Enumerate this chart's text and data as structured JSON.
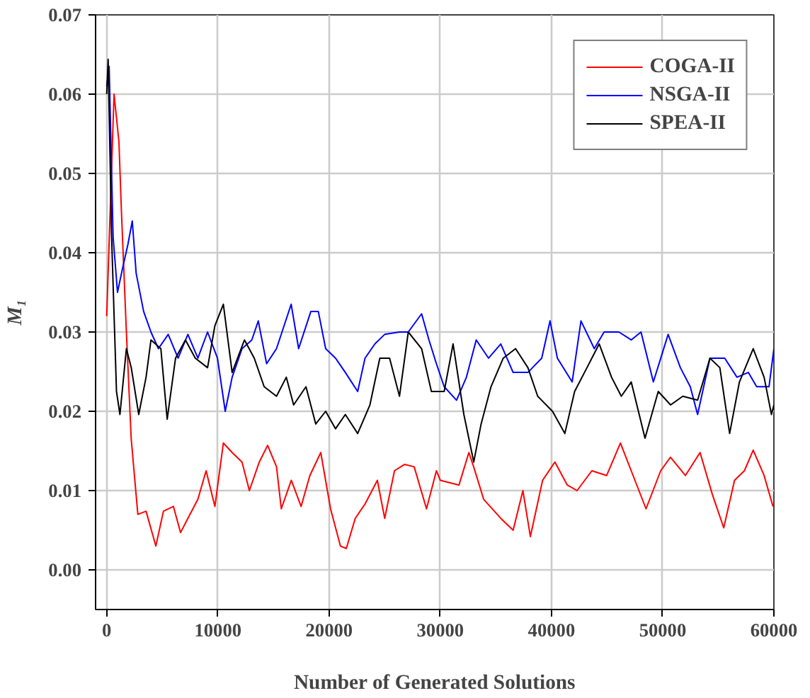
{
  "chart_data": {
    "type": "line",
    "xlabel": "Number of Generated Solutions",
    "ylabel": "M₁",
    "xlim": [
      -1000,
      60000
    ],
    "ylim": [
      -0.005,
      0.07
    ],
    "xticks": [
      0,
      10000,
      20000,
      30000,
      40000,
      50000,
      60000
    ],
    "yticks": [
      {
        "value": 0,
        "label": "0.00"
      },
      {
        "value": 0.01,
        "label": "0.01"
      },
      {
        "value": 0.02,
        "label": "0.02"
      },
      {
        "value": 0.03,
        "label": "0.03"
      },
      {
        "value": 0.04,
        "label": "0.04"
      },
      {
        "value": 0.05,
        "label": "0.05"
      },
      {
        "value": 0.06,
        "label": "0.06"
      },
      {
        "value": 0.07,
        "label": "0.07"
      }
    ],
    "grid": true,
    "legend": "top right",
    "marker": "none",
    "line_style": "solid",
    "series": [
      {
        "name": "COGA-II",
        "color": "#ff0000",
        "x": [
          0,
          660,
          1100,
          1330,
          1770,
          2200,
          2800,
          3540,
          4420,
          5100,
          6000,
          6640,
          7300,
          8200,
          8940,
          9730,
          10490,
          11280,
          12170,
          12830,
          13720,
          14470,
          15270,
          15700,
          16600,
          17480,
          18270,
          19250,
          20130,
          21020,
          21550,
          22350,
          23230,
          24340,
          25000,
          25880,
          26770,
          27650,
          28760,
          29650,
          30000,
          31680,
          32570,
          33000,
          33900,
          35440,
          36550,
          37430,
          38100,
          39200,
          40310,
          41420,
          42300,
          43630,
          44960,
          46200,
          47170,
          48500,
          49820,
          50700,
          52040,
          53360,
          54470,
          55490,
          56460,
          57350,
          58140,
          59120,
          59920
        ],
        "values": [
          0.032,
          0.06,
          0.054,
          0.045,
          0.03,
          0.0166,
          0.007,
          0.0074,
          0.003,
          0.0074,
          0.008,
          0.0047,
          0.0065,
          0.0089,
          0.0125,
          0.008,
          0.016,
          0.0148,
          0.0136,
          0.01,
          0.0136,
          0.0157,
          0.013,
          0.0077,
          0.0113,
          0.008,
          0.0119,
          0.0148,
          0.0077,
          0.003,
          0.0027,
          0.0065,
          0.0083,
          0.0113,
          0.0065,
          0.0125,
          0.0133,
          0.013,
          0.0077,
          0.0125,
          0.0113,
          0.0107,
          0.0148,
          0.013,
          0.0089,
          0.0065,
          0.005,
          0.01,
          0.0042,
          0.0113,
          0.0136,
          0.0107,
          0.01,
          0.0125,
          0.0119,
          0.016,
          0.0125,
          0.0077,
          0.0125,
          0.0142,
          0.0119,
          0.0148,
          0.0095,
          0.0053,
          0.0113,
          0.0125,
          0.0151,
          0.0119,
          0.008
        ]
      },
      {
        "name": "NSGA-II",
        "color": "#0000ff",
        "x": [
          0,
          220,
          575,
          970,
          1420,
          1900,
          2300,
          2650,
          3320,
          3980,
          4650,
          5530,
          6420,
          7300,
          8200,
          9070,
          9960,
          10660,
          11280,
          12170,
          13050,
          13630,
          14380,
          15270,
          16590,
          17260,
          18360,
          19030,
          19690,
          20580,
          21460,
          22570,
          23230,
          24120,
          25000,
          26330,
          27120,
          28320,
          28980,
          29650,
          30350,
          31460,
          32350,
          33230,
          34340,
          35440,
          36550,
          37880,
          39120,
          39870,
          40530,
          41860,
          42650,
          43850,
          44730,
          46060,
          47170,
          48050,
          49160,
          50490,
          51590,
          52480,
          53140,
          54250,
          55580,
          56680,
          57700,
          58450,
          59560,
          60000
        ],
        "values": [
          0.061,
          0.0635,
          0.042,
          0.035,
          0.038,
          0.041,
          0.044,
          0.0374,
          0.0326,
          0.03,
          0.0279,
          0.0297,
          0.0267,
          0.0297,
          0.0267,
          0.03,
          0.0267,
          0.02,
          0.0243,
          0.0279,
          0.029,
          0.0314,
          0.026,
          0.0279,
          0.0335,
          0.0279,
          0.0326,
          0.0326,
          0.0279,
          0.0267,
          0.0249,
          0.0225,
          0.0267,
          0.0285,
          0.0297,
          0.03,
          0.03,
          0.0323,
          0.029,
          0.026,
          0.0231,
          0.0214,
          0.0243,
          0.029,
          0.0267,
          0.0285,
          0.0249,
          0.0249,
          0.0267,
          0.0314,
          0.0267,
          0.0237,
          0.0314,
          0.0279,
          0.03,
          0.03,
          0.029,
          0.03,
          0.0237,
          0.0297,
          0.0255,
          0.0231,
          0.0196,
          0.0267,
          0.0267,
          0.0243,
          0.0249,
          0.0231,
          0.0231,
          0.0279
        ]
      },
      {
        "name": "SPEA-II",
        "color": "#000000",
        "x": [
          0,
          130,
          440,
          880,
          1190,
          1770,
          2210,
          2880,
          3540,
          3980,
          4870,
          5440,
          6190,
          7080,
          7970,
          9070,
          9730,
          10490,
          11280,
          12390,
          13270,
          14160,
          15270,
          16150,
          16810,
          17920,
          18800,
          19690,
          20580,
          21460,
          22570,
          23670,
          24560,
          25440,
          26330,
          27120,
          28320,
          29200,
          30350,
          31150,
          32120,
          33010,
          33670,
          34560,
          35660,
          36770,
          37880,
          38760,
          40090,
          41200,
          42080,
          43190,
          44290,
          45400,
          46280,
          47170,
          48410,
          49600,
          50710,
          51810,
          53140,
          54250,
          55140,
          56020,
          56900,
          58140,
          59120,
          59780,
          60000
        ],
        "values": [
          0.06,
          0.0644,
          0.042,
          0.0225,
          0.0196,
          0.0279,
          0.0255,
          0.0196,
          0.0243,
          0.029,
          0.0279,
          0.019,
          0.0267,
          0.029,
          0.0267,
          0.0255,
          0.0308,
          0.0335,
          0.0249,
          0.029,
          0.0267,
          0.0231,
          0.0219,
          0.0243,
          0.0208,
          0.0231,
          0.0184,
          0.02,
          0.0178,
          0.0196,
          0.0172,
          0.0208,
          0.0267,
          0.0267,
          0.0219,
          0.03,
          0.0279,
          0.0225,
          0.0225,
          0.0285,
          0.0196,
          0.0136,
          0.0184,
          0.0231,
          0.0267,
          0.0279,
          0.0255,
          0.0219,
          0.02,
          0.0172,
          0.0225,
          0.0255,
          0.0285,
          0.0243,
          0.0219,
          0.0237,
          0.0166,
          0.0225,
          0.0208,
          0.0219,
          0.0214,
          0.0267,
          0.0255,
          0.0172,
          0.0237,
          0.0279,
          0.0243,
          0.0196,
          0.0208
        ]
      }
    ]
  }
}
